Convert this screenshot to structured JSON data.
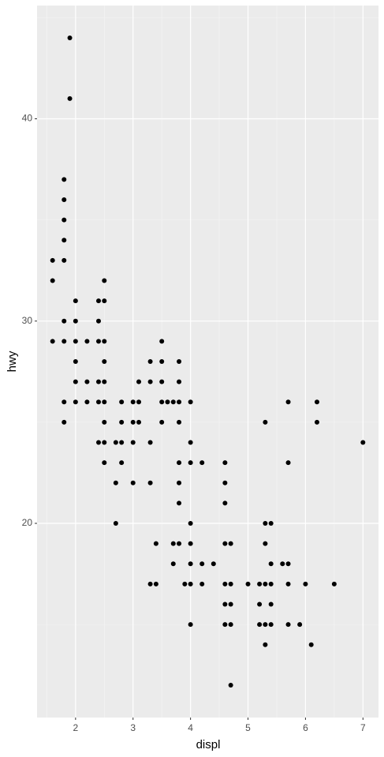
{
  "chart_data": {
    "type": "scatter",
    "xlabel": "displ",
    "ylabel": "hwy",
    "x": [
      1.6,
      1.6,
      1.6,
      1.8,
      1.8,
      1.8,
      1.8,
      1.8,
      1.8,
      1.8,
      1.8,
      1.8,
      1.9,
      1.9,
      2.0,
      2.0,
      2.0,
      2.0,
      2.0,
      2.0,
      2.2,
      2.2,
      2.2,
      2.4,
      2.4,
      2.4,
      2.4,
      2.4,
      2.4,
      2.5,
      2.5,
      2.5,
      2.5,
      2.5,
      2.5,
      2.5,
      2.5,
      2.5,
      2.7,
      2.7,
      2.7,
      2.8,
      2.8,
      2.8,
      2.8,
      3.0,
      3.0,
      3.0,
      3.0,
      3.1,
      3.1,
      3.1,
      3.3,
      3.3,
      3.3,
      3.3,
      3.3,
      3.4,
      3.4,
      3.5,
      3.5,
      3.5,
      3.5,
      3.5,
      3.6,
      3.7,
      3.7,
      3.7,
      3.8,
      3.8,
      3.8,
      3.8,
      3.8,
      3.8,
      3.8,
      3.8,
      3.9,
      4.0,
      4.0,
      4.0,
      4.0,
      4.0,
      4.0,
      4.0,
      4.0,
      4.2,
      4.2,
      4.2,
      4.4,
      4.6,
      4.6,
      4.6,
      4.6,
      4.6,
      4.6,
      4.6,
      4.7,
      4.7,
      4.7,
      4.7,
      4.7,
      5.0,
      5.2,
      5.2,
      5.2,
      5.3,
      5.3,
      5.3,
      5.3,
      5.3,
      5.3,
      5.4,
      5.4,
      5.4,
      5.4,
      5.4,
      5.6,
      5.7,
      5.7,
      5.7,
      5.7,
      5.7,
      5.9,
      6.0,
      6.1,
      6.2,
      6.2,
      6.5,
      7.0
    ],
    "values": [
      33,
      32,
      29,
      37,
      36,
      35,
      34,
      33,
      30,
      29,
      26,
      25,
      44,
      41,
      31,
      30,
      29,
      28,
      27,
      26,
      29,
      27,
      26,
      31,
      30,
      29,
      27,
      26,
      24,
      32,
      31,
      29,
      28,
      27,
      26,
      25,
      24,
      23,
      24,
      22,
      20,
      26,
      25,
      24,
      23,
      26,
      25,
      24,
      22,
      27,
      26,
      25,
      28,
      27,
      24,
      22,
      17,
      19,
      17,
      29,
      28,
      27,
      26,
      25,
      26,
      26,
      19,
      18,
      28,
      27,
      26,
      25,
      23,
      22,
      21,
      19,
      17,
      26,
      24,
      23,
      20,
      19,
      18,
      17,
      15,
      23,
      18,
      17,
      18,
      23,
      22,
      21,
      19,
      17,
      16,
      15,
      19,
      17,
      16,
      15,
      12,
      17,
      17,
      16,
      15,
      25,
      20,
      19,
      17,
      15,
      14,
      20,
      18,
      17,
      16,
      15,
      18,
      26,
      23,
      18,
      17,
      15,
      15,
      17,
      14,
      26,
      25,
      17,
      24
    ],
    "color": "#000000",
    "xlim": [
      1.33,
      7.27
    ],
    "ylim": [
      10.4,
      45.6
    ],
    "xticks": [
      2,
      3,
      4,
      5,
      6,
      7
    ],
    "yticks": [
      20,
      30,
      40
    ],
    "grid": true
  }
}
